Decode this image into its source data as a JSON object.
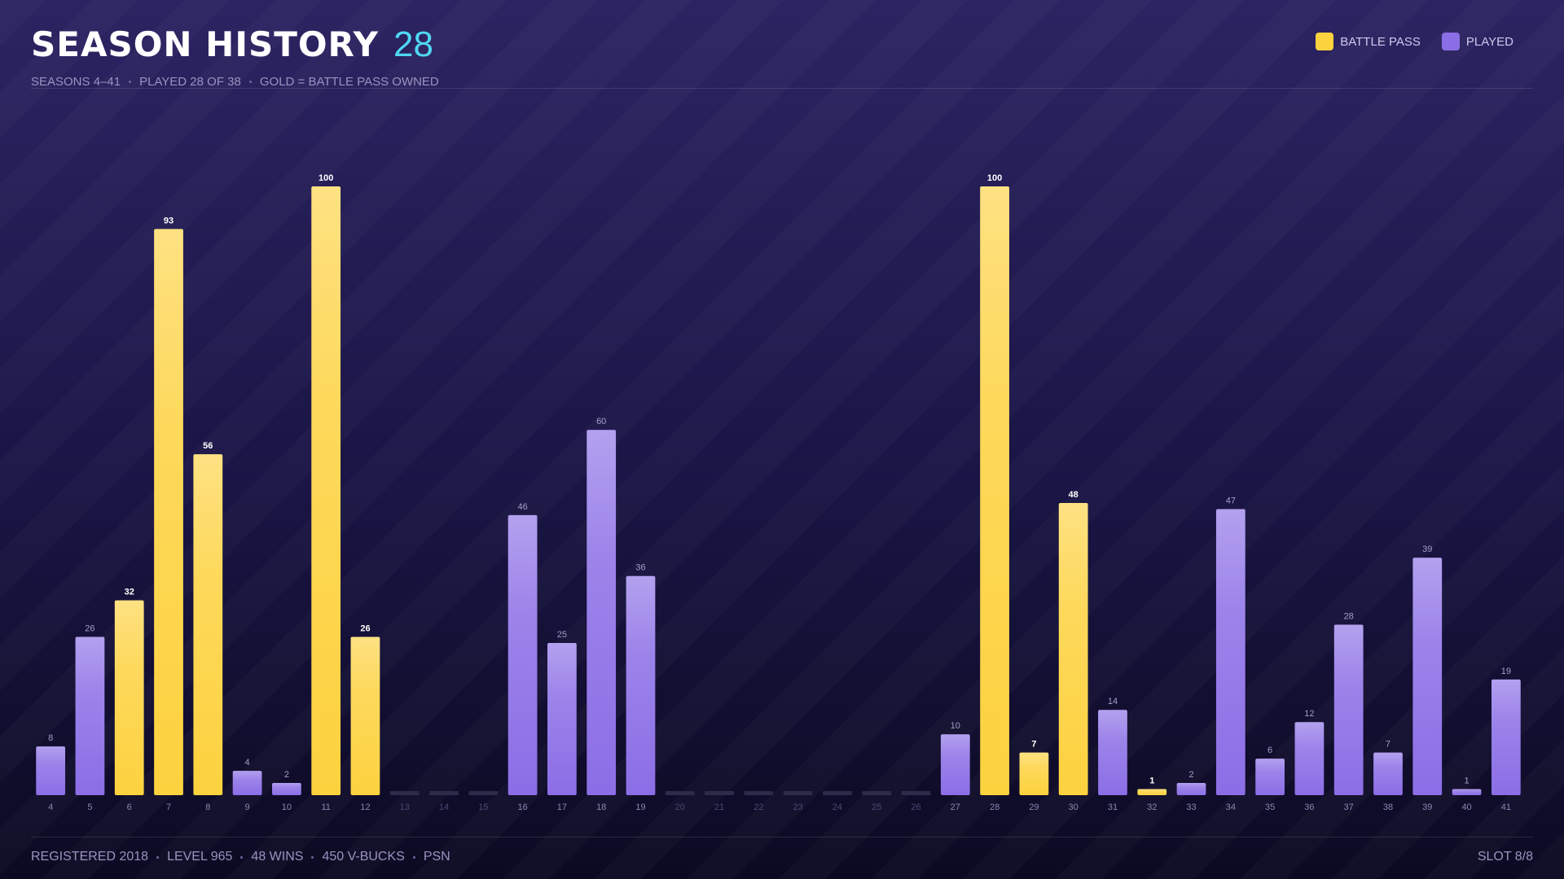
{
  "header": {
    "title": "SEASON HISTORY",
    "count": "28",
    "subtitle": [
      "SEASONS 4–41",
      "PLAYED 28 OF 38",
      "GOLD = BATTLE PASS OWNED"
    ]
  },
  "chart_data": {
    "type": "bar",
    "categories": [
      "4",
      "5",
      "6",
      "7",
      "8",
      "9",
      "10",
      "11",
      "12",
      "13",
      "14",
      "15",
      "16",
      "17",
      "18",
      "19",
      "20",
      "21",
      "22",
      "23",
      "24",
      "25",
      "26",
      "27",
      "28",
      "29",
      "30",
      "31",
      "32",
      "33",
      "34",
      "35",
      "36",
      "37",
      "38",
      "39",
      "40",
      "41"
    ],
    "series": [
      {
        "name": "BATTLE PASS",
        "color": "#fdd23f",
        "values": [
          null,
          null,
          32,
          93,
          56,
          null,
          null,
          100,
          26,
          null,
          null,
          null,
          null,
          null,
          null,
          null,
          null,
          null,
          null,
          null,
          null,
          null,
          null,
          null,
          100,
          7,
          48,
          null,
          1,
          null,
          null,
          null,
          null,
          null,
          null,
          null,
          null,
          null
        ]
      },
      {
        "name": "PLAYED",
        "color": "#8b6ee6",
        "values": [
          8,
          26,
          null,
          null,
          null,
          4,
          2,
          null,
          null,
          null,
          null,
          null,
          46,
          25,
          60,
          36,
          null,
          null,
          null,
          null,
          null,
          null,
          null,
          10,
          null,
          null,
          null,
          14,
          null,
          2,
          47,
          6,
          12,
          28,
          7,
          39,
          1,
          19
        ]
      }
    ]
  },
  "footer": {
    "items": [
      "REGISTERED 2018",
      "LEVEL 965",
      "48 WINS",
      "450 V-BUCKS",
      "PSN"
    ],
    "slot": "SLOT 8/8"
  }
}
